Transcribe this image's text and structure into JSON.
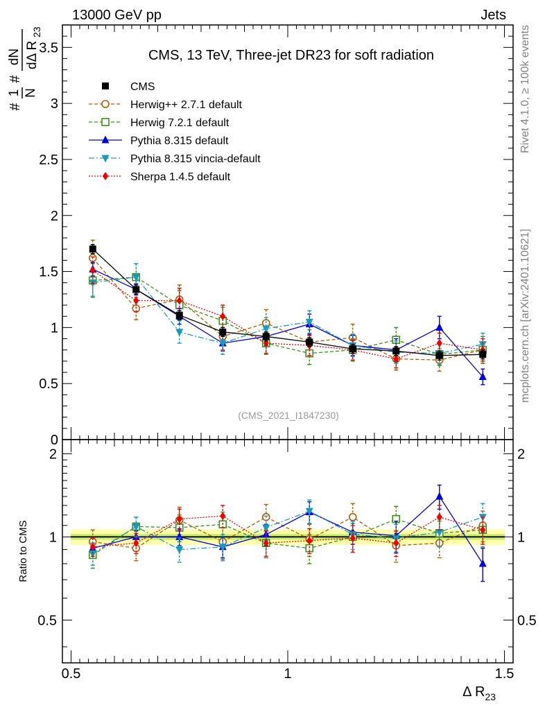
{
  "header": {
    "left": "13000 GeV pp",
    "right": "Jets",
    "side_rivet": "Rivet 4.1.0, ≥ 100k events",
    "side_mcplots": "mcplots.cern.ch [arXiv:2401.10621]",
    "analysis_id": "(CMS_2021_I1847230)"
  },
  "colors": {
    "CMS": "#000000",
    "Herwig++": "#b35900",
    "Herwig7": "#3a8f14",
    "Pythia": "#0000dd",
    "Vincia": "#1a99bb",
    "Sherpa": "#ee0000",
    "band_outer": "#ffff66",
    "band_inner": "#66cc00"
  },
  "chart_data": [
    {
      "type": "line",
      "title": "CMS, 13 TeV, Three-jet DR23 for soft radiation",
      "ylabel_parts": [
        "#",
        "1",
        "N",
        "#",
        "dN",
        "dΔ R",
        "23"
      ],
      "xlim": [
        0.48,
        1.52
      ],
      "ylim": [
        0,
        3.7
      ],
      "yticks": [
        0,
        0.5,
        1,
        1.5,
        2,
        2.5,
        3,
        3.5
      ],
      "ytick_labels": [
        "0",
        "0.5",
        "1",
        "1.5",
        "2",
        "2.5",
        "3",
        "3.5"
      ],
      "legend": [
        "CMS",
        "Herwig++ 2.7.1 default",
        "Herwig 7.2.1 default",
        "Pythia 8.315 default",
        "Pythia 8.315 vincia-default",
        "Sherpa 1.4.5 default"
      ],
      "x": [
        0.55,
        0.65,
        0.75,
        0.85,
        0.95,
        1.05,
        1.15,
        1.25,
        1.35,
        1.45
      ],
      "series": [
        {
          "name": "CMS",
          "values": [
            1.7,
            1.34,
            1.11,
            0.96,
            0.92,
            0.87,
            0.81,
            0.79,
            0.75,
            0.76
          ],
          "errors": [
            0.04,
            0.04,
            0.04,
            0.04,
            0.04,
            0.04,
            0.04,
            0.04,
            0.04,
            0.04
          ]
        },
        {
          "name": "Herwig++ 2.7.1 default",
          "values": [
            1.62,
            1.17,
            1.25,
            0.92,
            1.04,
            0.87,
            0.91,
            0.72,
            0.71,
            0.8
          ],
          "errors": [
            0.16,
            0.1,
            0.13,
            0.12,
            0.12,
            0.11,
            0.12,
            0.1,
            0.1,
            0.12
          ]
        },
        {
          "name": "Herwig 7.2.1 default",
          "values": [
            1.42,
            1.45,
            1.2,
            1.06,
            0.86,
            0.77,
            0.8,
            0.89,
            0.76,
            0.8
          ],
          "errors": [
            0.15,
            0.12,
            0.13,
            0.12,
            0.1,
            0.1,
            0.1,
            0.11,
            0.1,
            0.12
          ]
        },
        {
          "name": "Pythia 8.315 default",
          "values": [
            1.52,
            1.34,
            1.1,
            0.86,
            0.92,
            1.03,
            0.84,
            0.8,
            1.0,
            0.56
          ],
          "errors": [
            0.06,
            0.05,
            0.07,
            0.07,
            0.08,
            0.09,
            0.09,
            0.1,
            0.1,
            0.07
          ]
        },
        {
          "name": "Pythia 8.315 vincia-default",
          "values": [
            1.4,
            1.45,
            0.96,
            0.86,
            0.99,
            1.05,
            0.84,
            0.78,
            0.77,
            0.85
          ],
          "errors": [
            0.12,
            0.12,
            0.1,
            0.1,
            0.1,
            0.1,
            0.1,
            0.1,
            0.1,
            0.1
          ]
        },
        {
          "name": "Sherpa 1.4.5 default",
          "values": [
            1.51,
            1.24,
            1.24,
            1.1,
            0.86,
            0.84,
            0.8,
            0.72,
            0.86,
            0.8
          ],
          "errors": [
            0.12,
            0.1,
            0.11,
            0.1,
            0.09,
            0.09,
            0.09,
            0.08,
            0.09,
            0.1
          ]
        }
      ]
    },
    {
      "type": "line",
      "title": "",
      "ylabel": "Ratio to CMS",
      "xlabel_main": "Δ R",
      "xlabel_sub": "23",
      "xlim": [
        0.48,
        1.52
      ],
      "ylim": [
        0.35,
        2.25
      ],
      "xticks": [
        0.5,
        1,
        1.5
      ],
      "xtick_labels": [
        "0.5",
        "1",
        "1.5"
      ],
      "yticks": [
        0.5,
        1,
        2
      ],
      "ytick_labels": [
        "0.5",
        "1",
        "2"
      ],
      "band_half_width": 0.04,
      "x": [
        0.55,
        0.65,
        0.75,
        0.85,
        0.95,
        1.05,
        1.15,
        1.25,
        1.35,
        1.45
      ],
      "series": [
        {
          "name": "Herwig++ 2.7.1 default",
          "values": [
            0.96,
            0.91,
            1.15,
            0.96,
            1.18,
            0.98,
            1.18,
            0.93,
            0.95,
            1.1
          ],
          "errors": [
            0.1,
            0.09,
            0.13,
            0.13,
            0.13,
            0.13,
            0.14,
            0.12,
            0.11,
            0.14
          ]
        },
        {
          "name": "Herwig 7.2.1 default",
          "values": [
            0.86,
            1.09,
            1.08,
            1.11,
            0.95,
            0.91,
            1.0,
            1.16,
            1.03,
            1.06
          ],
          "errors": [
            0.09,
            0.09,
            0.12,
            0.12,
            0.11,
            0.11,
            0.12,
            0.13,
            0.11,
            0.14
          ]
        },
        {
          "name": "Pythia 8.315 default",
          "values": [
            0.91,
            1.0,
            1.0,
            0.92,
            1.02,
            1.23,
            1.04,
            1.01,
            1.4,
            0.8
          ],
          "errors": [
            0.04,
            0.05,
            0.07,
            0.08,
            0.09,
            0.11,
            0.1,
            0.13,
            0.14,
            0.11
          ]
        },
        {
          "name": "Pythia 8.315 vincia-default",
          "values": [
            0.87,
            1.09,
            0.9,
            0.92,
            1.08,
            1.24,
            1.02,
            0.99,
            1.04,
            1.18
          ],
          "errors": [
            0.08,
            0.09,
            0.09,
            0.1,
            0.11,
            0.12,
            0.12,
            0.12,
            0.12,
            0.14
          ]
        },
        {
          "name": "Sherpa 1.4.5 default",
          "values": [
            0.92,
            0.95,
            1.16,
            1.19,
            0.95,
            0.97,
            0.99,
            0.95,
            1.18,
            1.06
          ],
          "errors": [
            0.07,
            0.08,
            0.1,
            0.11,
            0.1,
            0.1,
            0.11,
            0.1,
            0.12,
            0.12
          ]
        }
      ]
    }
  ]
}
